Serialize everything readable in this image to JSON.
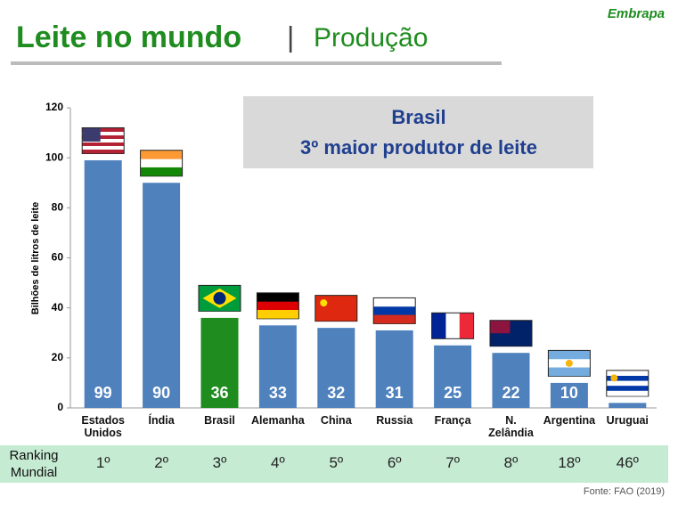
{
  "header": {
    "title": "Leite no mundo",
    "separator": "|",
    "subtitle": "Produção",
    "logo": "Embrapa"
  },
  "chart_data": {
    "type": "bar",
    "y_label": "Bilhões de litros de leite",
    "callout": [
      "Brasil",
      "3º maior produtor de leite"
    ],
    "categories": [
      "Estados Unidos",
      "Índia",
      "Brasil",
      "Alemanha",
      "China",
      "Russia",
      "França",
      "N. Zelândia",
      "Argentina",
      "Uruguai"
    ],
    "values": [
      99,
      90,
      36,
      33,
      32,
      31,
      25,
      22,
      10,
      2
    ],
    "value_labels": [
      "99",
      "90",
      "36",
      "33",
      "32",
      "31",
      "25",
      "22",
      "10",
      null
    ],
    "colors": [
      "#4f81bd",
      "#4f81bd",
      "#1e8c1e",
      "#4f81bd",
      "#4f81bd",
      "#4f81bd",
      "#4f81bd",
      "#4f81bd",
      "#4f81bd",
      "#4f81bd"
    ],
    "ylim": [
      0,
      120
    ],
    "yticks": [
      0,
      20,
      40,
      60,
      80,
      100,
      120
    ],
    "grid": false
  },
  "ranking": {
    "label": "Ranking Mundial",
    "values": [
      "1º",
      "2º",
      "3º",
      "4º",
      "5º",
      "6º",
      "7º",
      "8º",
      "18º",
      "46º"
    ]
  },
  "source": "Fonte: FAO (2019)"
}
